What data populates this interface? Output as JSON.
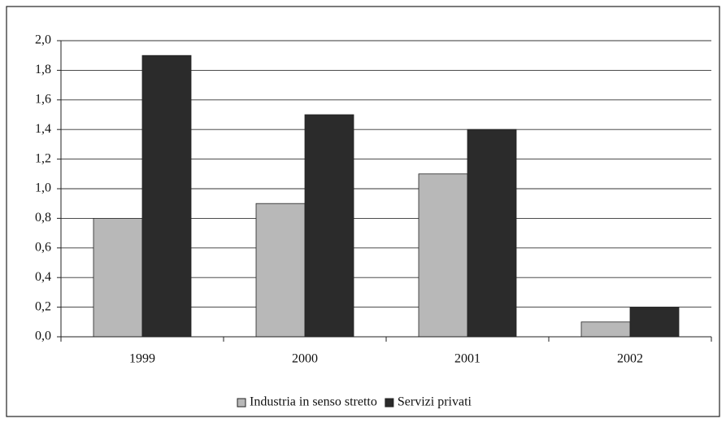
{
  "chart_data": {
    "type": "bar",
    "categories": [
      "1999",
      "2000",
      "2001",
      "2002"
    ],
    "series": [
      {
        "name": "Industria in senso stretto",
        "color": "#b8b8b8",
        "values": [
          0.8,
          0.9,
          1.1,
          0.1
        ]
      },
      {
        "name": "Servizi privati",
        "color": "#2b2b2b",
        "values": [
          1.9,
          1.5,
          1.4,
          0.2
        ]
      }
    ],
    "ylim": [
      0,
      2
    ],
    "yticks": [
      {
        "value": 0,
        "label": "0,0"
      },
      {
        "value": 0.2,
        "label": "0,2"
      },
      {
        "value": 0.4,
        "label": "0,4"
      },
      {
        "value": 0.6,
        "label": "0,6"
      },
      {
        "value": 0.8,
        "label": "0,8"
      },
      {
        "value": 1.0,
        "label": "1,0"
      },
      {
        "value": 1.2,
        "label": "1,2"
      },
      {
        "value": 1.4,
        "label": "1,4"
      },
      {
        "value": 1.6,
        "label": "1,6"
      },
      {
        "value": 1.8,
        "label": "1,8"
      },
      {
        "value": 2.0,
        "label": "2,0"
      }
    ],
    "grid": true,
    "legend": "bottom"
  }
}
